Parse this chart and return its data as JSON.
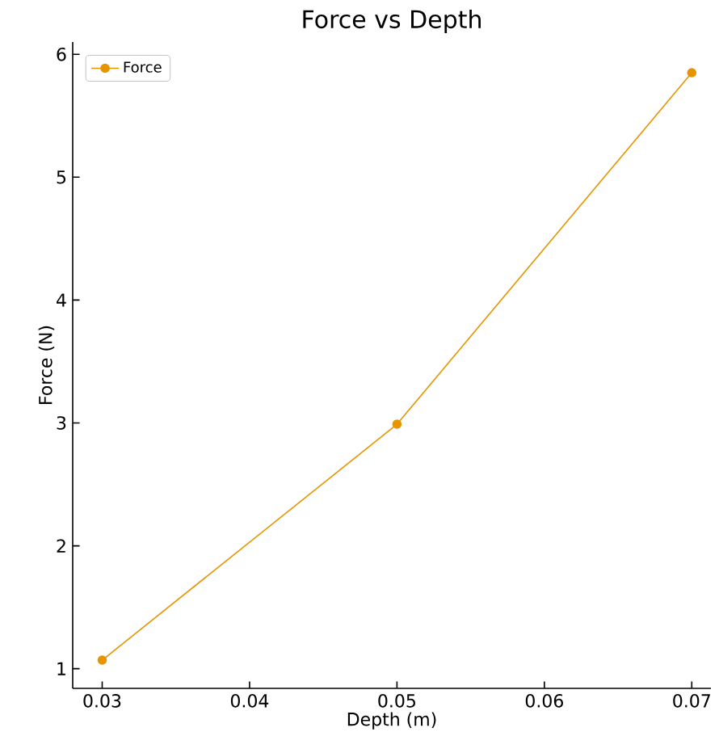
{
  "chart_data": {
    "type": "line",
    "title": "Force vs Depth",
    "xlabel": "Depth (m)",
    "ylabel": "Force (N)",
    "x": [
      0.03,
      0.05,
      0.07
    ],
    "series": [
      {
        "name": "Force",
        "color": "#e69500",
        "values": [
          1.07,
          2.99,
          5.85
        ]
      }
    ],
    "xlim": [
      0.028,
      0.0713
    ],
    "ylim": [
      0.84,
      6.1
    ],
    "xticks": [
      0.03,
      0.04,
      0.05,
      0.06,
      0.07
    ],
    "yticks": [
      1,
      2,
      3,
      4,
      5,
      6
    ],
    "marker": "circle",
    "line_style": "solid",
    "legend": "top left",
    "grid": false
  }
}
